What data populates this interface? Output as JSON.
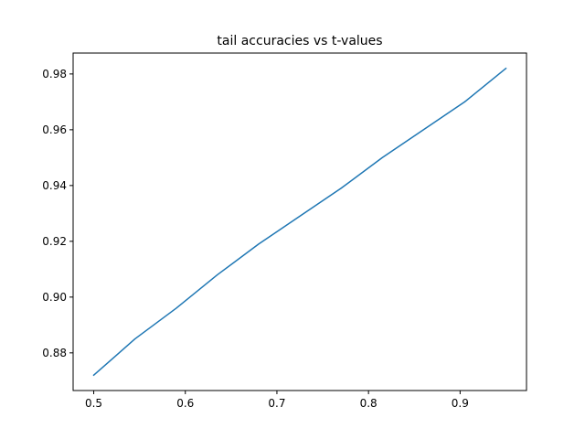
{
  "chart_data": {
    "type": "line",
    "title": "tail accuracies vs t-values",
    "xlabel": "",
    "ylabel": "",
    "xlim": [
      0.4775,
      0.9725
    ],
    "ylim": [
      0.8665,
      0.9875
    ],
    "xticks": [
      0.5,
      0.6,
      0.7,
      0.8,
      0.9
    ],
    "xtick_labels": [
      "0.5",
      "0.6",
      "0.7",
      "0.8",
      "0.9"
    ],
    "yticks": [
      0.88,
      0.9,
      0.92,
      0.94,
      0.96,
      0.98
    ],
    "ytick_labels": [
      "0.88",
      "0.90",
      "0.92",
      "0.94",
      "0.96",
      "0.98"
    ],
    "grid": false,
    "series": [
      {
        "color": "#1f77b4",
        "x": [
          0.5,
          0.545,
          0.59,
          0.635,
          0.68,
          0.725,
          0.77,
          0.815,
          0.86,
          0.905,
          0.95
        ],
        "y": [
          0.872,
          0.885,
          0.896,
          0.908,
          0.919,
          0.929,
          0.939,
          0.95,
          0.96,
          0.97,
          0.982
        ]
      }
    ]
  }
}
